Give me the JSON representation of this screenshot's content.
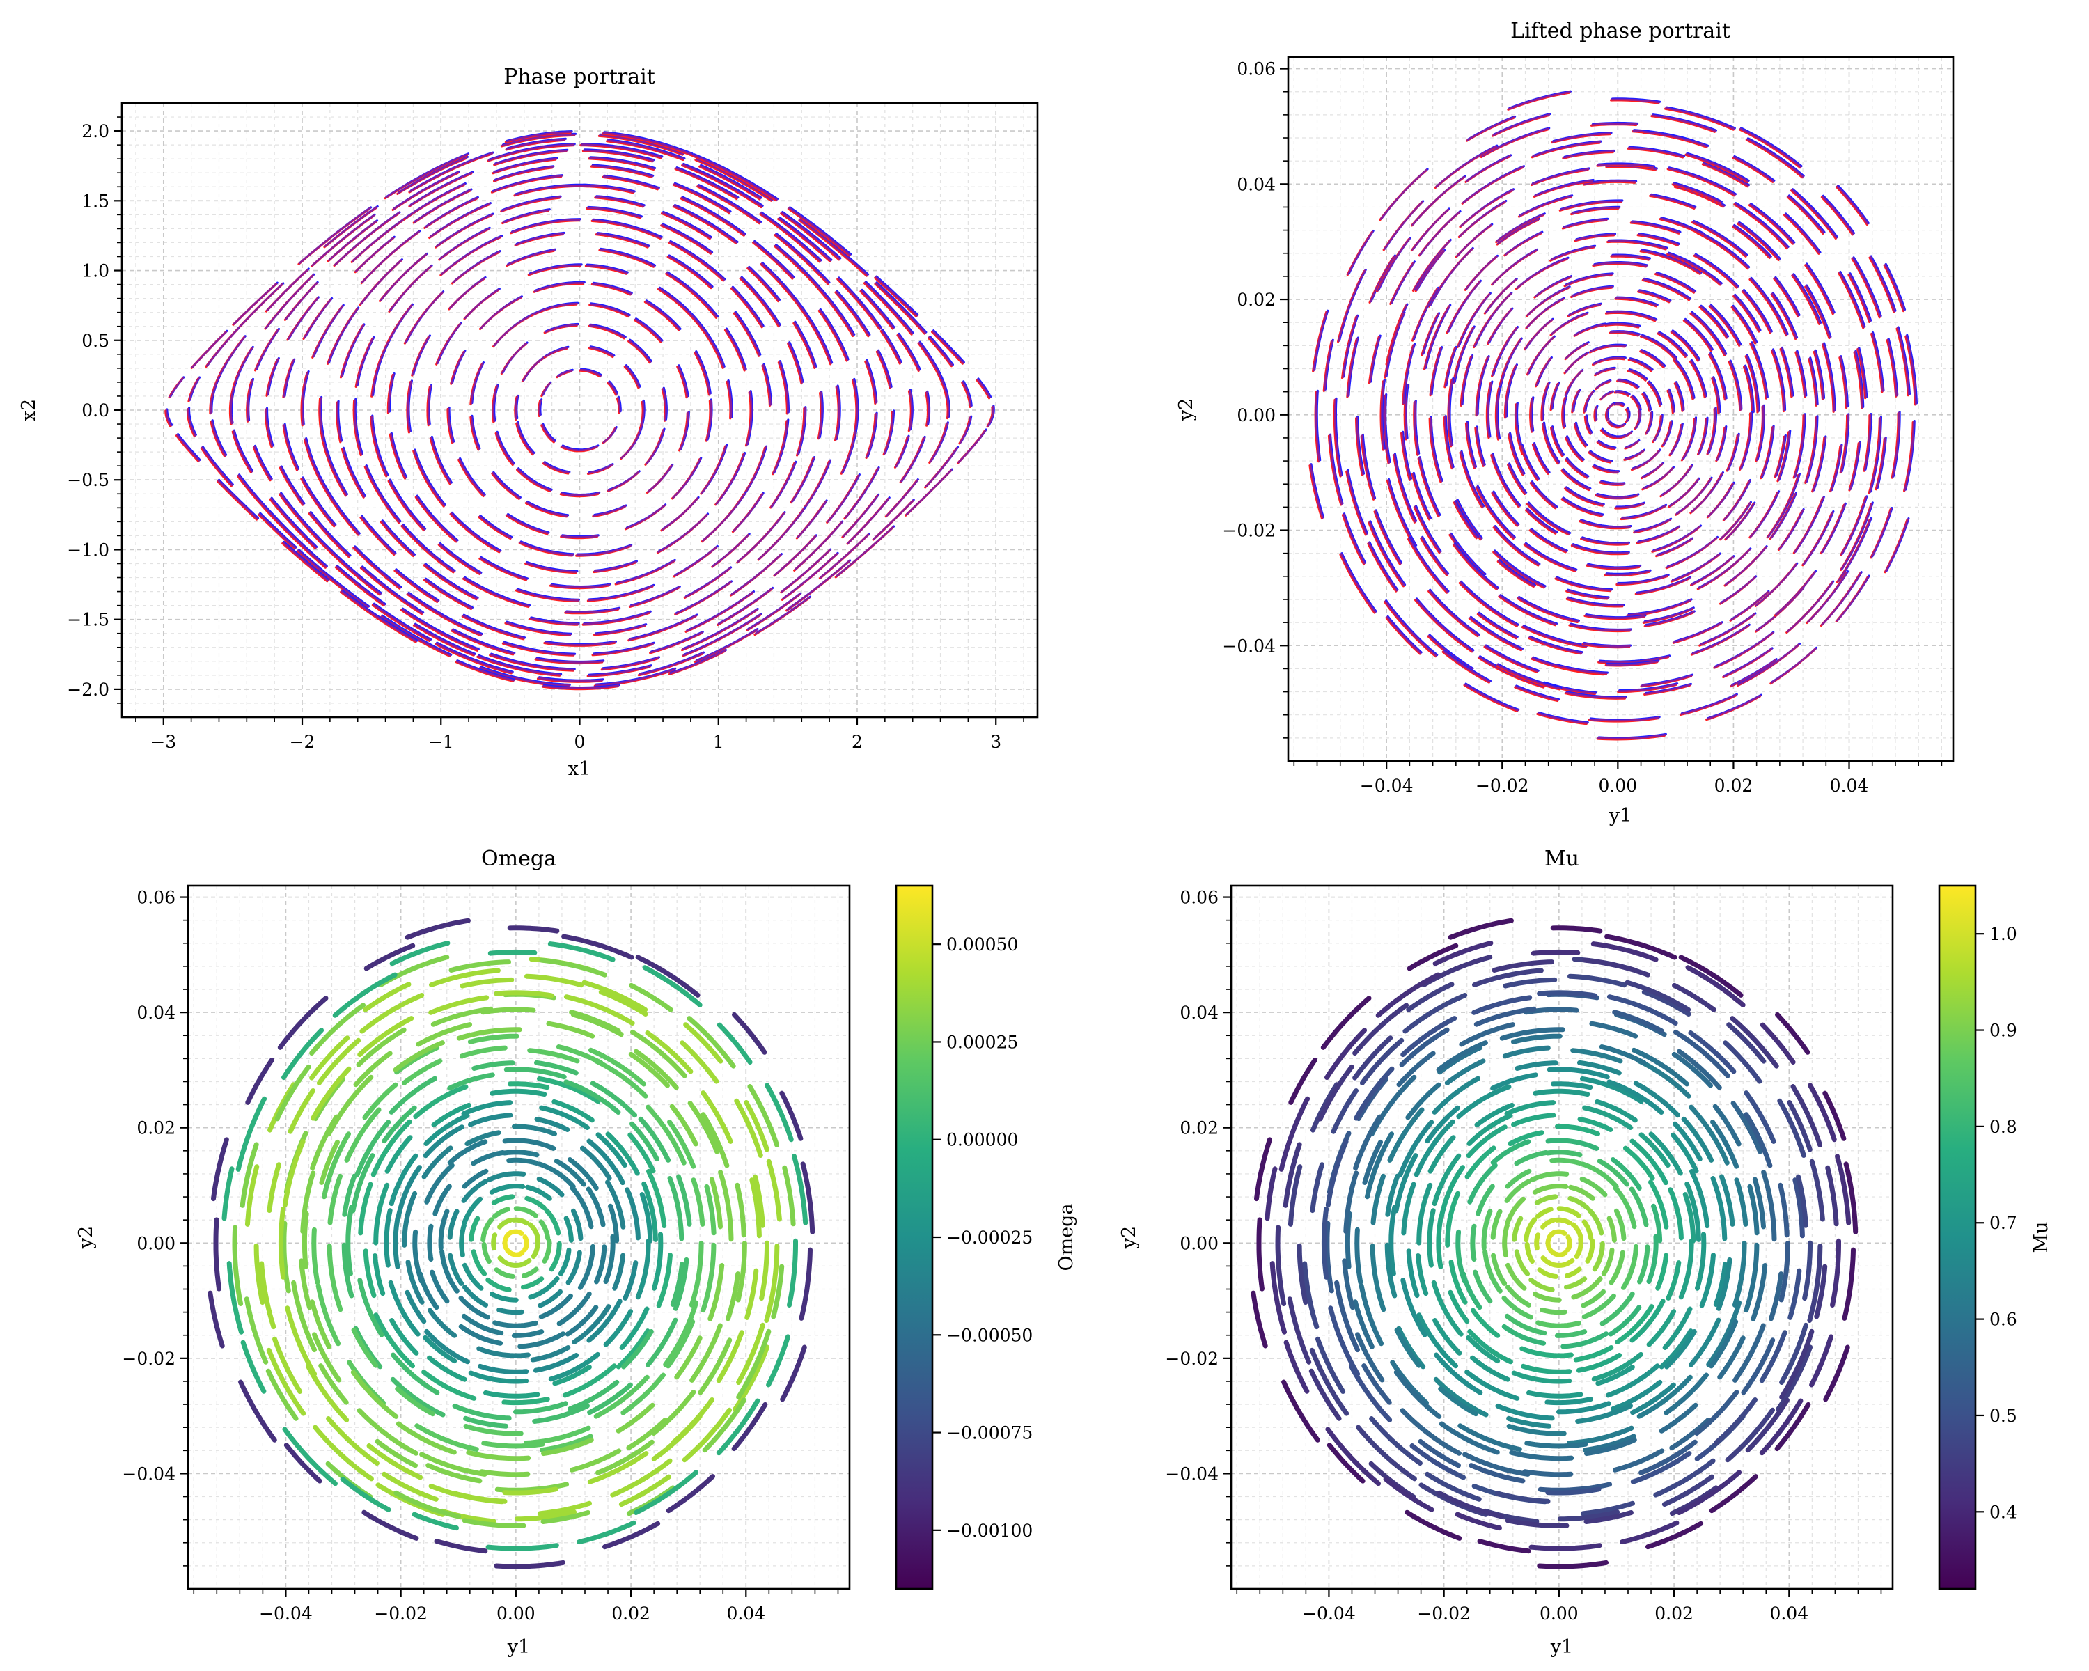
{
  "colors": {
    "truth": "#1f1fff",
    "prediction": "#ff1f1f",
    "overlap": "#8a1d9a",
    "grid": "#c9c9c9"
  },
  "chart_data": [
    {
      "id": "phase",
      "type": "line",
      "title": "Phase portrait",
      "xlabel": "x1",
      "ylabel": "x2",
      "xlim": [
        -3.3,
        3.3
      ],
      "ylim": [
        -2.2,
        2.2
      ],
      "xticks": [
        -3,
        -2,
        -1,
        0,
        1,
        2,
        3
      ],
      "xtick_labels": [
        "−3",
        "−2",
        "−1",
        "0",
        "1",
        "2",
        "3"
      ],
      "yticks": [
        -2.0,
        -1.5,
        -1.0,
        -0.5,
        0.0,
        0.5,
        1.0,
        1.5,
        2.0
      ],
      "ytick_labels": [
        "−2.0",
        "−1.5",
        "−1.0",
        "−0.5",
        "0.0",
        "0.5",
        "1.0",
        "1.5",
        "2.0"
      ],
      "grid": true,
      "series": [
        {
          "color": "#1f1fff"
        },
        {
          "color": "#ff1f1f"
        }
      ],
      "orbit_energies": [
        0.04,
        0.1,
        0.18,
        0.28,
        0.4,
        0.52,
        0.65,
        0.78,
        0.9,
        1.02,
        1.14,
        1.26,
        1.38,
        1.5,
        1.6,
        1.7,
        1.78,
        1.86,
        1.93,
        1.98
      ]
    },
    {
      "id": "lifted",
      "type": "line",
      "title": "Lifted phase portrait",
      "xlabel": "y1",
      "ylabel": "y2",
      "xlim": [
        -0.057,
        0.058
      ],
      "ylim": [
        -0.06,
        0.062
      ],
      "xticks": [
        -0.04,
        -0.02,
        0.0,
        0.02,
        0.04
      ],
      "xtick_labels": [
        "−0.04",
        "−0.02",
        "0.00",
        "0.02",
        "0.04"
      ],
      "yticks": [
        -0.04,
        -0.02,
        0.0,
        0.02,
        0.04,
        0.06
      ],
      "ytick_labels": [
        "−0.04",
        "−0.02",
        "0.00",
        "0.02",
        "0.04",
        "0.06"
      ],
      "grid": true,
      "series": [
        {
          "color": "#1f1fff"
        },
        {
          "color": "#ff1f1f"
        }
      ],
      "ring_radii": [
        0.002,
        0.004,
        0.006,
        0.008,
        0.01,
        0.012,
        0.014,
        0.016,
        0.018,
        0.02,
        0.022,
        0.024,
        0.026,
        0.028,
        0.03,
        0.032,
        0.034,
        0.036,
        0.038,
        0.04,
        0.042,
        0.044,
        0.046,
        0.048,
        0.05,
        0.052,
        0.055
      ]
    },
    {
      "id": "omega",
      "type": "scatter",
      "title": "Omega",
      "xlabel": "y1",
      "ylabel": "y2",
      "xlim": [
        -0.057,
        0.058
      ],
      "ylim": [
        -0.06,
        0.062
      ],
      "xticks": [
        -0.04,
        -0.02,
        0.0,
        0.02,
        0.04
      ],
      "xtick_labels": [
        "−0.04",
        "−0.02",
        "0.00",
        "0.02",
        "0.04"
      ],
      "yticks": [
        -0.04,
        -0.02,
        0.0,
        0.02,
        0.04,
        0.06
      ],
      "ytick_labels": [
        "−0.04",
        "−0.02",
        "0.00",
        "0.02",
        "0.04",
        "0.06"
      ],
      "grid": true,
      "colorbar": {
        "label": "Omega",
        "colormap": "viridis",
        "range": [
          -0.00115,
          0.00065
        ],
        "ticks": [
          -0.001,
          -0.00075,
          -0.0005,
          -0.00025,
          0.0,
          0.00025,
          0.0005
        ],
        "tick_labels": [
          "−0.00100",
          "−0.00075",
          "−0.00050",
          "−0.00025",
          "0.00000",
          "0.00025",
          "0.00050"
        ]
      },
      "ring_radii": [
        0.002,
        0.004,
        0.006,
        0.008,
        0.01,
        0.012,
        0.014,
        0.016,
        0.018,
        0.02,
        0.022,
        0.024,
        0.026,
        0.028,
        0.03,
        0.032,
        0.034,
        0.036,
        0.038,
        0.04,
        0.042,
        0.044,
        0.046,
        0.048,
        0.05,
        0.052,
        0.055
      ],
      "ring_values": [
        0.0006,
        0.0004,
        0.0002,
        0.0,
        -0.0002,
        -0.0003,
        -0.0004,
        -0.0004,
        -0.0004,
        -0.00035,
        -0.0003,
        -0.0002,
        -0.0001,
        0.0,
        0.0001,
        0.0001,
        0.0002,
        0.0002,
        0.0003,
        0.0003,
        0.0003,
        0.0004,
        0.0004,
        0.0004,
        0.0003,
        0.0,
        -0.0009
      ]
    },
    {
      "id": "mu",
      "type": "scatter",
      "title": "Mu",
      "xlabel": "y1",
      "ylabel": "y2",
      "xlim": [
        -0.057,
        0.058
      ],
      "ylim": [
        -0.06,
        0.062
      ],
      "xticks": [
        -0.04,
        -0.02,
        0.0,
        0.02,
        0.04
      ],
      "xtick_labels": [
        "−0.04",
        "−0.02",
        "0.00",
        "0.02",
        "0.04"
      ],
      "yticks": [
        -0.04,
        -0.02,
        0.0,
        0.02,
        0.04,
        0.06
      ],
      "ytick_labels": [
        "−0.04",
        "−0.02",
        "0.00",
        "0.02",
        "0.04",
        "0.06"
      ],
      "grid": true,
      "colorbar": {
        "label": "Mu",
        "colormap": "viridis",
        "range": [
          0.32,
          1.05
        ],
        "ticks": [
          0.4,
          0.5,
          0.6,
          0.7,
          0.8,
          0.9,
          1.0
        ],
        "tick_labels": [
          "0.4",
          "0.5",
          "0.6",
          "0.7",
          "0.8",
          "0.9",
          "1.0"
        ]
      },
      "ring_radii": [
        0.002,
        0.004,
        0.006,
        0.008,
        0.01,
        0.012,
        0.014,
        0.016,
        0.018,
        0.02,
        0.022,
        0.024,
        0.026,
        0.028,
        0.03,
        0.032,
        0.034,
        0.036,
        0.038,
        0.04,
        0.042,
        0.044,
        0.046,
        0.048,
        0.05,
        0.052,
        0.055
      ],
      "ring_values": [
        1.0,
        0.98,
        0.96,
        0.93,
        0.9,
        0.88,
        0.86,
        0.83,
        0.8,
        0.78,
        0.76,
        0.74,
        0.72,
        0.7,
        0.68,
        0.66,
        0.63,
        0.6,
        0.58,
        0.56,
        0.53,
        0.5,
        0.48,
        0.46,
        0.44,
        0.42,
        0.36
      ]
    }
  ]
}
